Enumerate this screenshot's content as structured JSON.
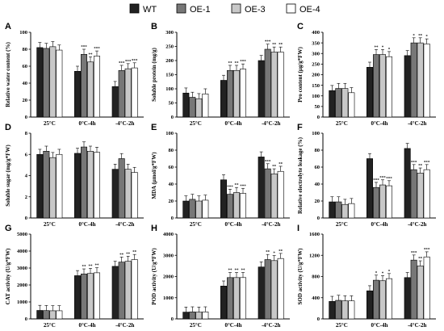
{
  "legend": {
    "items": [
      {
        "name": "WT",
        "color": "#222222"
      },
      {
        "name": "OE-1",
        "color": "#777777"
      },
      {
        "name": "OE-3",
        "color": "#c8c8c8"
      },
      {
        "name": "OE-4",
        "color": "#ffffff"
      }
    ]
  },
  "chart_data": [
    {
      "panel": "A",
      "type": "bar",
      "ylabel": "Relative water content (%)",
      "categories": [
        "25°C",
        "0°C-4h",
        "-4°C-2h"
      ],
      "ylim": [
        0,
        100
      ],
      "yticks": [
        0,
        20,
        40,
        60,
        80,
        100
      ],
      "series": [
        {
          "name": "WT",
          "values": [
            82,
            54,
            36
          ]
        },
        {
          "name": "OE-1",
          "values": [
            81,
            74,
            55
          ]
        },
        {
          "name": "OE-3",
          "values": [
            83,
            65,
            57
          ]
        },
        {
          "name": "OE-4",
          "values": [
            79,
            72,
            58
          ]
        }
      ],
      "significance": [
        [
          "",
          "",
          "",
          ""
        ],
        [
          "",
          "***",
          "**",
          "***"
        ],
        [
          "",
          "***",
          "***",
          "***"
        ]
      ]
    },
    {
      "panel": "B",
      "type": "bar",
      "ylabel": "Soluble protein (mg/g)",
      "categories": [
        "25°C",
        "0°C-4h",
        "-4°C-2h"
      ],
      "ylim": [
        0,
        300
      ],
      "yticks": [
        0,
        50,
        100,
        150,
        200,
        250,
        300
      ],
      "series": [
        {
          "name": "WT",
          "values": [
            85,
            130,
            200
          ]
        },
        {
          "name": "OE-1",
          "values": [
            70,
            165,
            240
          ]
        },
        {
          "name": "OE-3",
          "values": [
            65,
            165,
            230
          ]
        },
        {
          "name": "OE-4",
          "values": [
            82,
            170,
            230
          ]
        }
      ],
      "significance": [
        [
          "",
          "",
          "",
          ""
        ],
        [
          "",
          "**",
          "**",
          "***"
        ],
        [
          "",
          "***",
          "**",
          "**"
        ]
      ]
    },
    {
      "panel": "C",
      "type": "bar",
      "ylabel": "Pro content (μg/g*FW)",
      "categories": [
        "25°C",
        "0°C-4h",
        "-4°C-2h"
      ],
      "ylim": [
        0,
        400
      ],
      "yticks": [
        0,
        50,
        100,
        150,
        200,
        250,
        300,
        350,
        400
      ],
      "series": [
        {
          "name": "WT",
          "values": [
            125,
            235,
            290
          ]
        },
        {
          "name": "OE-1",
          "values": [
            135,
            295,
            350
          ]
        },
        {
          "name": "OE-3",
          "values": [
            135,
            295,
            350
          ]
        },
        {
          "name": "OE-4",
          "values": [
            115,
            285,
            345
          ]
        }
      ],
      "significance": [
        [
          "",
          "",
          "",
          ""
        ],
        [
          "",
          "**",
          "*",
          "*"
        ],
        [
          "",
          "*",
          "**",
          "*"
        ]
      ]
    },
    {
      "panel": "D",
      "type": "bar",
      "ylabel": "Soluble sugar (mg/g*FW)",
      "categories": [
        "25°C",
        "0°C-4h",
        "-4°C-2h"
      ],
      "ylim": [
        0,
        8
      ],
      "yticks": [
        0,
        2,
        4,
        6,
        8
      ],
      "series": [
        {
          "name": "WT",
          "values": [
            6.0,
            6.1,
            4.6
          ]
        },
        {
          "name": "OE-1",
          "values": [
            6.3,
            6.7,
            5.6
          ]
        },
        {
          "name": "OE-3",
          "values": [
            5.7,
            6.3,
            4.6
          ]
        },
        {
          "name": "OE-4",
          "values": [
            6.0,
            6.2,
            4.3
          ]
        }
      ],
      "significance": [
        [
          "",
          "",
          "",
          ""
        ],
        [
          "",
          "",
          "",
          ""
        ],
        [
          "",
          "",
          "",
          ""
        ]
      ]
    },
    {
      "panel": "E",
      "type": "bar",
      "ylabel": "MDA (μmol/g*FW)",
      "categories": [
        "25°C",
        "0°C-4h",
        "-4°C-2h"
      ],
      "ylim": [
        0,
        100
      ],
      "yticks": [
        0,
        20,
        40,
        60,
        80,
        100
      ],
      "series": [
        {
          "name": "WT",
          "values": [
            20,
            45,
            72
          ]
        },
        {
          "name": "OE-1",
          "values": [
            22,
            28,
            58
          ]
        },
        {
          "name": "OE-3",
          "values": [
            20,
            30,
            52
          ]
        },
        {
          "name": "OE-4",
          "values": [
            21,
            29,
            55
          ]
        }
      ],
      "significance": [
        [
          "",
          "",
          "",
          ""
        ],
        [
          "",
          "***",
          "**",
          "***"
        ],
        [
          "",
          "***",
          "**",
          "**"
        ]
      ]
    },
    {
      "panel": "F",
      "type": "bar",
      "ylabel": "Relative electrolyte leakage (%)",
      "categories": [
        "25°C",
        "0°C-4h",
        "-4°C-2h"
      ],
      "ylim": [
        0,
        100
      ],
      "yticks": [
        0,
        20,
        40,
        60,
        80,
        100
      ],
      "series": [
        {
          "name": "WT",
          "values": [
            19,
            70,
            82
          ]
        },
        {
          "name": "OE-1",
          "values": [
            19,
            36,
            57
          ]
        },
        {
          "name": "OE-3",
          "values": [
            16,
            39,
            53
          ]
        },
        {
          "name": "OE-4",
          "values": [
            17,
            38,
            57
          ]
        }
      ],
      "significance": [
        [
          "",
          "",
          "",
          ""
        ],
        [
          "",
          "***",
          "***",
          "***"
        ],
        [
          "",
          "***",
          "**",
          "***"
        ]
      ]
    },
    {
      "panel": "G",
      "type": "bar",
      "ylabel": "CAT activity (U/g*FW)",
      "categories": [
        "25°C",
        "0°C-4h",
        "-4°C-2h"
      ],
      "ylim": [
        0,
        5000
      ],
      "yticks": [
        0,
        1000,
        2000,
        3000,
        4000,
        5000
      ],
      "series": [
        {
          "name": "WT",
          "values": [
            500,
            2550,
            3100
          ]
        },
        {
          "name": "OE-1",
          "values": [
            490,
            2650,
            3350
          ]
        },
        {
          "name": "OE-3",
          "values": [
            480,
            2680,
            3400
          ]
        },
        {
          "name": "OE-4",
          "values": [
            480,
            2720,
            3500
          ]
        }
      ],
      "significance": [
        [
          "",
          "",
          "",
          ""
        ],
        [
          "",
          "**",
          "**",
          "**"
        ],
        [
          "",
          "**",
          "**",
          "**"
        ]
      ]
    },
    {
      "panel": "H",
      "type": "bar",
      "ylabel": "POD activity (U/g*FW)",
      "categories": [
        "25°C",
        "0°C-4h",
        "-4°C-2h"
      ],
      "ylim": [
        0,
        4000
      ],
      "yticks": [
        0,
        1000,
        2000,
        3000,
        4000
      ],
      "series": [
        {
          "name": "WT",
          "values": [
            320,
            1550,
            2450
          ]
        },
        {
          "name": "OE-1",
          "values": [
            330,
            1950,
            2800
          ]
        },
        {
          "name": "OE-3",
          "values": [
            320,
            1950,
            2750
          ]
        },
        {
          "name": "OE-4",
          "values": [
            330,
            1950,
            2850
          ]
        }
      ],
      "significance": [
        [
          "",
          "",
          "",
          ""
        ],
        [
          "",
          "**",
          "**",
          "**"
        ],
        [
          "",
          "**",
          "*",
          "**"
        ]
      ]
    },
    {
      "panel": "I",
      "type": "bar",
      "ylabel": "SOD activity (U/g*FW)",
      "categories": [
        "25°C",
        "0°C-4h",
        "-4°C-2h"
      ],
      "ylim": [
        0,
        1600
      ],
      "yticks": [
        0,
        400,
        800,
        1200,
        1600
      ],
      "series": [
        {
          "name": "WT",
          "values": [
            330,
            530,
            780
          ]
        },
        {
          "name": "OE-1",
          "values": [
            350,
            730,
            1110
          ]
        },
        {
          "name": "OE-3",
          "values": [
            340,
            720,
            1000
          ]
        },
        {
          "name": "OE-4",
          "values": [
            340,
            760,
            1170
          ]
        }
      ],
      "significance": [
        [
          "",
          "",
          "",
          ""
        ],
        [
          "",
          "*",
          "*",
          "*"
        ],
        [
          "",
          "***",
          "**",
          "***"
        ]
      ]
    }
  ]
}
